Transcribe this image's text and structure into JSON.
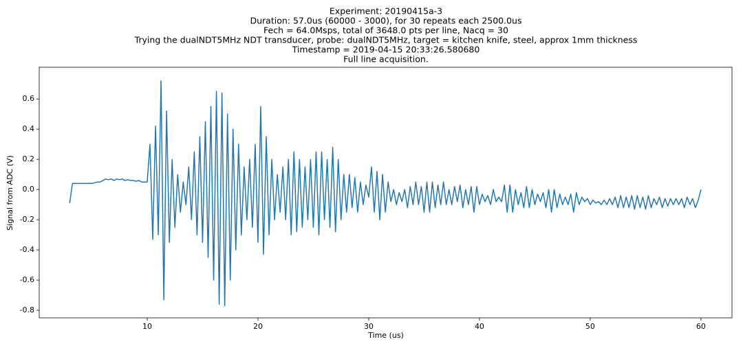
{
  "chart_data": {
    "type": "line",
    "title": [
      "Experiment: 20190415a-3",
      "Duration: 57.0us (60000 - 3000), for 30 repeats each 2500.0us",
      "Fech = 64.0Msps, total of 3648.0 pts per line, Nacq = 30",
      "Trying the dualNDT5MHz NDT transducer, probe: dualNDT5MHz, target = kitchen knife, steel, approx 1mm thickness",
      "Timestamp = 2019-04-15 20:33:26.580680",
      "Full line acquisition."
    ],
    "xlabel": "Time (us)",
    "ylabel": "Signal from ADC (V)",
    "color": "#1f77b4",
    "xlim": [
      0.25,
      62.8
    ],
    "ylim": [
      -0.85,
      0.81
    ],
    "xticks": [
      10,
      20,
      30,
      40,
      50,
      60
    ],
    "yticks": [
      -0.8,
      -0.6,
      -0.4,
      -0.2,
      {
        "value": 0,
        "label": "0.0"
      },
      0.2,
      0.4,
      0.6
    ],
    "x": [
      3,
      3.25,
      3.5,
      3.75,
      4,
      4.25,
      4.5,
      4.75,
      5,
      5.25,
      5.5,
      5.75,
      6,
      6.25,
      6.5,
      6.75,
      7,
      7.25,
      7.5,
      7.75,
      8,
      8.25,
      8.5,
      8.75,
      9,
      9.25,
      9.5,
      9.75,
      10,
      10.25,
      10.5,
      10.75,
      11,
      11.25,
      11.5,
      11.75,
      12,
      12.25,
      12.5,
      12.75,
      13,
      13.25,
      13.5,
      13.75,
      14,
      14.25,
      14.5,
      14.75,
      15,
      15.25,
      15.5,
      15.75,
      16,
      16.25,
      16.5,
      16.75,
      17,
      17.25,
      17.5,
      17.75,
      18,
      18.25,
      18.5,
      18.75,
      19,
      19.25,
      19.5,
      19.75,
      20,
      20.25,
      20.5,
      20.75,
      21,
      21.25,
      21.5,
      21.75,
      22,
      22.25,
      22.5,
      22.75,
      23,
      23.25,
      23.5,
      23.75,
      24,
      24.25,
      24.5,
      24.75,
      25,
      25.25,
      25.5,
      25.75,
      26,
      26.25,
      26.5,
      26.75,
      27,
      27.25,
      27.5,
      27.75,
      28,
      28.25,
      28.5,
      28.75,
      29,
      29.25,
      29.5,
      29.75,
      30,
      30.25,
      30.5,
      30.75,
      31,
      31.25,
      31.5,
      31.75,
      32,
      32.25,
      32.5,
      32.75,
      33,
      33.25,
      33.5,
      33.75,
      34,
      34.25,
      34.5,
      34.75,
      35,
      35.25,
      35.5,
      35.75,
      36,
      36.25,
      36.5,
      36.75,
      37,
      37.25,
      37.5,
      37.75,
      38,
      38.25,
      38.5,
      38.75,
      39,
      39.25,
      39.5,
      39.75,
      40,
      40.25,
      40.5,
      40.75,
      41,
      41.25,
      41.5,
      41.75,
      42,
      42.25,
      42.5,
      42.75,
      43,
      43.25,
      43.5,
      43.75,
      44,
      44.25,
      44.5,
      44.75,
      45,
      45.25,
      45.5,
      45.75,
      46,
      46.25,
      46.5,
      46.75,
      47,
      47.25,
      47.5,
      47.75,
      48,
      48.25,
      48.5,
      48.75,
      49,
      49.25,
      49.5,
      49.75,
      50,
      50.25,
      50.5,
      50.75,
      51,
      51.25,
      51.5,
      51.75,
      52,
      52.25,
      52.5,
      52.75,
      53,
      53.25,
      53.5,
      53.75,
      54,
      54.25,
      54.5,
      54.75,
      55,
      55.25,
      55.5,
      55.75,
      56,
      56.25,
      56.5,
      56.75,
      57,
      57.25,
      57.5,
      57.75,
      58,
      58.25,
      58.5,
      58.75,
      59,
      59.25,
      59.5,
      59.75,
      60
    ],
    "values": [
      -0.09,
      0.04,
      0.04,
      0.04,
      0.04,
      0.04,
      0.04,
      0.04,
      0.04,
      0.045,
      0.05,
      0.05,
      0.06,
      0.07,
      0.065,
      0.07,
      0.06,
      0.07,
      0.065,
      0.07,
      0.06,
      0.065,
      0.06,
      0.06,
      0.055,
      0.06,
      0.05,
      0.05,
      0.05,
      0.3,
      -0.33,
      0.42,
      -0.3,
      0.72,
      -0.73,
      0.52,
      -0.35,
      0.2,
      -0.25,
      0.1,
      -0.15,
      0.05,
      -0.1,
      0.15,
      -0.2,
      0.25,
      -0.3,
      0.35,
      -0.35,
      0.45,
      -0.45,
      0.55,
      -0.6,
      0.65,
      -0.76,
      0.64,
      -0.77,
      0.5,
      -0.6,
      0.4,
      -0.4,
      0.3,
      -0.3,
      0.15,
      -0.2,
      0.2,
      -0.25,
      0.3,
      -0.35,
      0.55,
      -0.43,
      0.35,
      -0.3,
      0.2,
      -0.2,
      0.1,
      -0.15,
      0.15,
      -0.2,
      0.2,
      -0.3,
      0.25,
      -0.28,
      0.2,
      -0.25,
      0.15,
      -0.2,
      0.2,
      -0.25,
      0.25,
      -0.3,
      0.25,
      -0.2,
      0.2,
      -0.25,
      0.28,
      -0.28,
      0.2,
      -0.2,
      0.1,
      -0.15,
      0.1,
      -0.12,
      0.08,
      -0.15,
      0.05,
      -0.1,
      0.03,
      -0.05,
      0.15,
      -0.15,
      0.12,
      -0.2,
      0.1,
      -0.15,
      0.05,
      -0.08,
      0,
      -0.1,
      -0.02,
      -0.08,
      0,
      -0.12,
      0.02,
      -0.1,
      0.05,
      -0.1,
      0.02,
      -0.15,
      0.05,
      -0.15,
      0.05,
      -0.12,
      0.03,
      -0.1,
      0.05,
      -0.1,
      0,
      -0.1,
      0.02,
      -0.08,
      0.03,
      -0.12,
      0,
      -0.1,
      0.02,
      -0.15,
      0.02,
      -0.1,
      -0.03,
      -0.08,
      -0.04,
      -0.1,
      0,
      -0.08,
      -0.05,
      -0.08,
      0.03,
      -0.15,
      0.03,
      -0.15,
      0,
      -0.1,
      -0.02,
      -0.12,
      0.02,
      -0.12,
      0,
      -0.1,
      -0.03,
      -0.08,
      -0.02,
      -0.12,
      0,
      -0.15,
      0,
      -0.12,
      -0.03,
      -0.1,
      -0.05,
      -0.1,
      -0.03,
      -0.15,
      -0.02,
      -0.1,
      -0.05,
      -0.08,
      -0.06,
      -0.1,
      -0.07,
      -0.09,
      -0.08,
      -0.1,
      -0.07,
      -0.1,
      -0.06,
      -0.1,
      -0.05,
      -0.12,
      -0.04,
      -0.12,
      -0.05,
      -0.12,
      -0.04,
      -0.13,
      -0.04,
      -0.12,
      -0.05,
      -0.13,
      -0.04,
      -0.12,
      -0.06,
      -0.1,
      -0.05,
      -0.12,
      -0.06,
      -0.11,
      -0.06,
      -0.1,
      -0.06,
      -0.1,
      -0.06,
      -0.12,
      -0.05,
      -0.1,
      -0.06,
      -0.12,
      -0.07,
      0
    ]
  }
}
